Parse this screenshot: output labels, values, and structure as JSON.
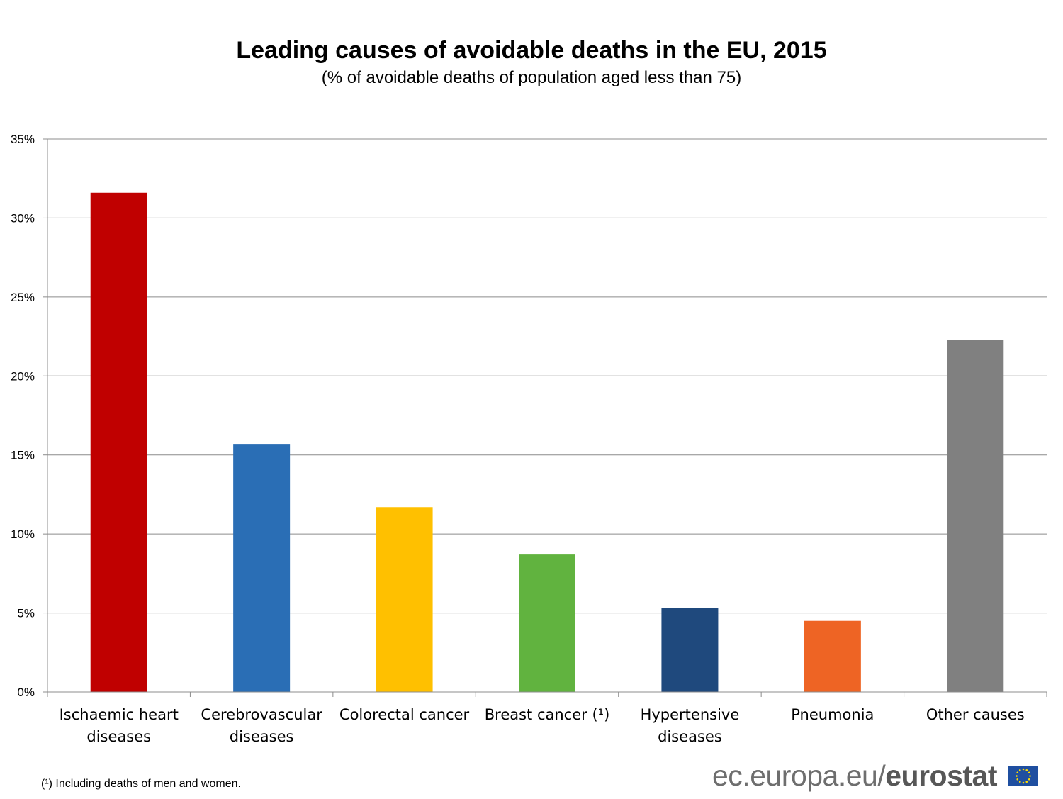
{
  "chart_data": {
    "type": "bar",
    "title": "Leading causes of avoidable deaths in the EU, 2015",
    "subtitle": "(% of avoidable deaths of population aged less than 75)",
    "categories": [
      [
        "Ischaemic heart",
        "diseases"
      ],
      [
        "Cerebrovascular",
        "diseases"
      ],
      [
        "Colorectal cancer"
      ],
      [
        "Breast cancer (¹)"
      ],
      [
        "Hypertensive",
        "diseases"
      ],
      [
        "Pneumonia"
      ],
      [
        "Other causes"
      ]
    ],
    "values": [
      31.6,
      15.7,
      11.7,
      8.7,
      5.3,
      4.5,
      22.3
    ],
    "colors": [
      "#c00000",
      "#2a6eb5",
      "#ffc000",
      "#61b33f",
      "#1f497d",
      "#ee6424",
      "#808080"
    ],
    "ylim": [
      0,
      35
    ],
    "yticks": [
      0,
      5,
      10,
      15,
      20,
      25,
      30,
      35
    ],
    "ytick_labels": [
      "0%",
      "5%",
      "10%",
      "15%",
      "20%",
      "25%",
      "30%",
      "35%"
    ],
    "grid": true,
    "xlabel": "",
    "ylabel": ""
  },
  "footnote": "(¹) Including deaths of men and women.",
  "source": {
    "prefix": "ec.europa.eu/",
    "name": "eurostat"
  }
}
